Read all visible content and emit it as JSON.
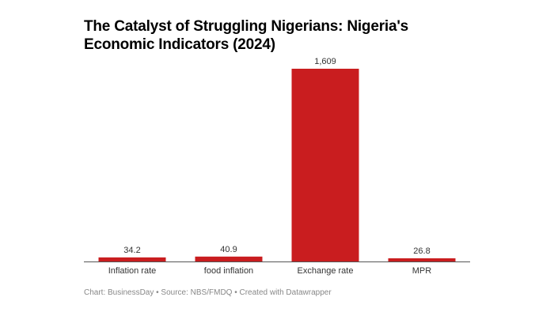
{
  "chart_data": {
    "type": "bar",
    "title": "The Catalyst of Struggling Nigerians: Nigeria's Economic Indicators (2024)",
    "categories": [
      "Inflation rate",
      "food inflation",
      "Exchange rate",
      "MPR"
    ],
    "values": [
      34.2,
      40.9,
      1609,
      26.8
    ],
    "value_labels": [
      "34.2",
      "40.9",
      "1,609",
      "26.8"
    ],
    "xlabel": "",
    "ylabel": "",
    "ylim": [
      0,
      1609
    ],
    "grid": false,
    "bar_color": "#c91d1f"
  },
  "footer": "Chart: BusinessDay • Source: NBS/FMDQ • Created with Datawrapper"
}
